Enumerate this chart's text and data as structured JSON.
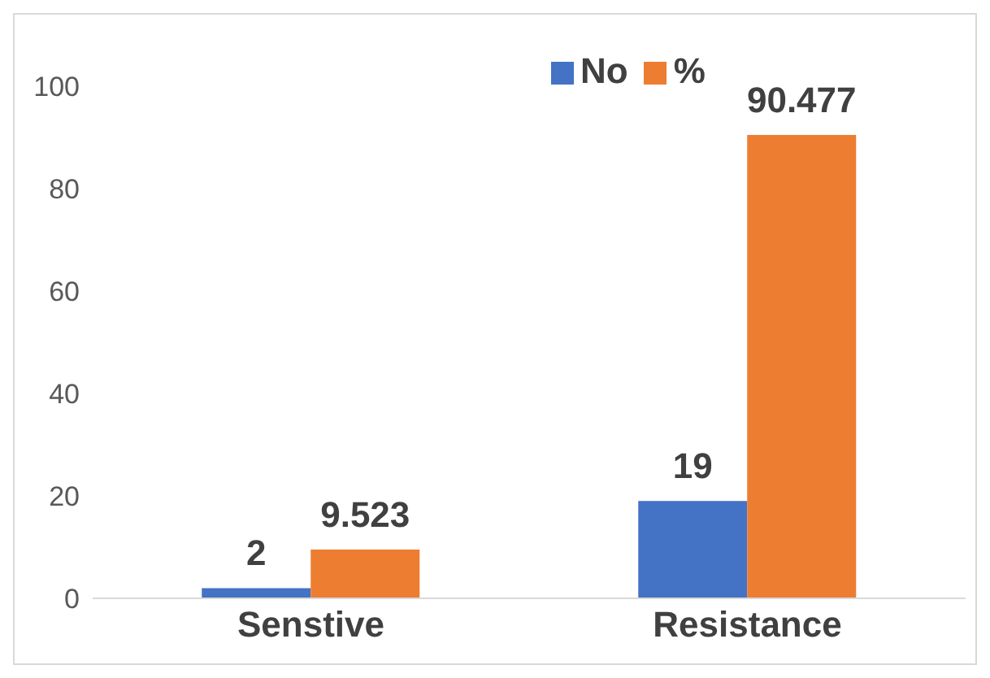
{
  "chart_data": {
    "type": "bar",
    "categories": [
      "Senstive",
      "Resistance"
    ],
    "series": [
      {
        "name": "No",
        "color": "#4472c4",
        "values": [
          2,
          19
        ]
      },
      {
        "name": "%",
        "color": "#ed7d31",
        "values": [
          9.523,
          90.477
        ]
      }
    ],
    "ylim": [
      0,
      100
    ],
    "yticks": [
      0,
      20,
      40,
      60,
      80,
      100
    ],
    "grid": false,
    "legend": "top",
    "data_labels": true
  }
}
